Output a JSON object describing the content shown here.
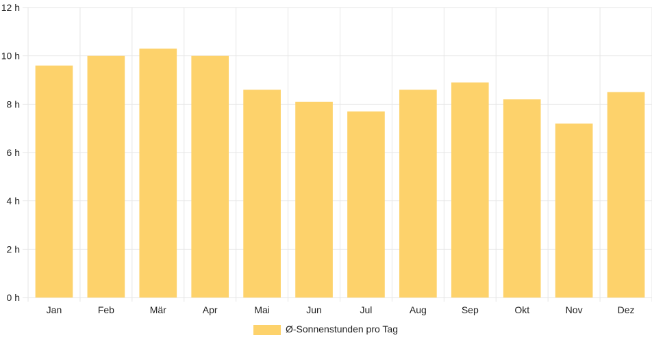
{
  "chart_data": {
    "type": "bar",
    "categories": [
      "Jan",
      "Feb",
      "Mär",
      "Apr",
      "Mai",
      "Jun",
      "Jul",
      "Aug",
      "Sep",
      "Okt",
      "Nov",
      "Dez"
    ],
    "series": [
      {
        "name": "Ø-Sonnenstunden pro Tag",
        "values": [
          9.6,
          10.0,
          10.3,
          10.0,
          8.6,
          8.1,
          7.7,
          8.6,
          8.9,
          8.2,
          7.2,
          8.5
        ],
        "color": "#fdd26b"
      }
    ],
    "y_ticks": [
      "0 h",
      "2 h",
      "4 h",
      "6 h",
      "8 h",
      "10 h",
      "12 h"
    ],
    "ylim": [
      0,
      12
    ],
    "grid": true,
    "legend_position": "bottom",
    "gridline_color": "#e6e6e6"
  }
}
